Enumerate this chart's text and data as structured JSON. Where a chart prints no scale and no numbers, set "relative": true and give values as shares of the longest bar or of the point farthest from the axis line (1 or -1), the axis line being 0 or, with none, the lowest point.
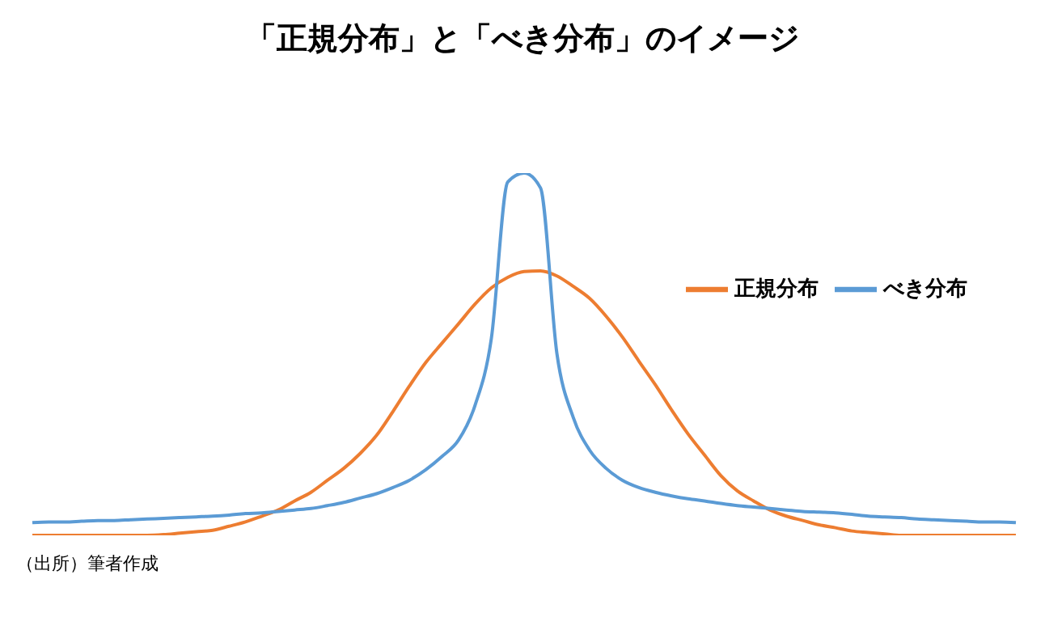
{
  "chart_data": {
    "type": "line",
    "title": "「正規分布」と「べき分布」のイメージ",
    "relative": true,
    "legend": "right",
    "marker": "none",
    "line_style": "solid",
    "grid": false,
    "annotations": [
      "（出所）筆者作成"
    ],
    "categories": [
      null,
      null,
      null,
      null,
      null,
      null,
      null,
      null,
      null,
      null,
      null,
      null,
      null,
      null,
      null,
      null,
      null,
      null,
      null,
      null,
      null,
      null,
      null,
      null,
      null,
      null,
      null,
      null,
      null,
      null,
      null,
      null,
      null,
      null,
      null,
      null,
      null,
      null,
      null,
      null,
      null,
      null,
      null,
      null,
      null,
      null,
      null,
      null,
      null,
      null,
      null,
      null,
      null,
      null,
      null,
      null,
      null,
      null,
      null,
      null,
      null
    ],
    "series": [
      {
        "name": "正規分布",
        "color": "#ed7d31",
        "values": [
          0,
          0,
          0,
          0,
          0,
          0,
          0,
          0,
          0.002,
          0.006,
          0.01,
          0.014,
          0.025,
          0.037,
          0.053,
          0.07,
          0.095,
          0.119,
          0.152,
          0.185,
          0.226,
          0.276,
          0.342,
          0.412,
          0.477,
          0.531,
          0.584,
          0.638,
          0.683,
          0.712,
          0.728,
          0.73,
          0.716,
          0.687,
          0.654,
          0.605,
          0.547,
          0.481,
          0.416,
          0.346,
          0.28,
          0.222,
          0.165,
          0.123,
          0.095,
          0.07,
          0.053,
          0.041,
          0.029,
          0.021,
          0.012,
          0.008,
          0.004,
          0,
          0,
          0,
          0,
          0,
          0,
          0,
          0
        ]
      },
      {
        "name": "べき分布",
        "color": "#5b9bd5",
        "values": [
          0.035,
          0.037,
          0.037,
          0.039,
          0.041,
          0.041,
          0.043,
          0.045,
          0.047,
          0.049,
          0.051,
          0.053,
          0.056,
          0.06,
          0.062,
          0.066,
          0.07,
          0.074,
          0.082,
          0.091,
          0.103,
          0.115,
          0.132,
          0.152,
          0.181,
          0.218,
          0.263,
          0.358,
          0.543,
          0.975,
          1,
          0.959,
          0.502,
          0.325,
          0.235,
          0.185,
          0.152,
          0.132,
          0.119,
          0.109,
          0.101,
          0.095,
          0.088,
          0.082,
          0.078,
          0.074,
          0.07,
          0.066,
          0.064,
          0.062,
          0.058,
          0.053,
          0.051,
          0.049,
          0.045,
          0.043,
          0.041,
          0.039,
          0.037,
          0.037,
          0.035
        ]
      }
    ]
  }
}
